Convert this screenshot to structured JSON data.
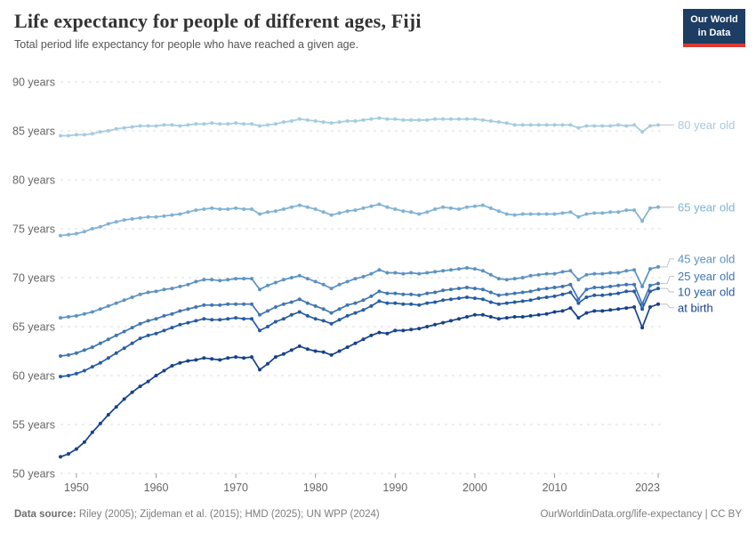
{
  "header": {
    "title": "Life expectancy for people of different ages, Fiji",
    "subtitle": "Total period life expectancy for people who have reached a given age.",
    "logo": {
      "line1": "Our World",
      "line2": "in Data"
    }
  },
  "footer": {
    "datasource_label": "Data source:",
    "datasource_text": " Riley (2005); Zijdeman et al. (2015); HMD (2025); UN WPP (2024)",
    "link_text": "OurWorldinData.org/life-expectancy | CC BY"
  },
  "colors": {
    "background": "#ffffff",
    "title": "#333333",
    "subtitle": "#555555",
    "gridline": "#dddddd",
    "axis_text": "#666666",
    "tick": "#999999",
    "connector": "#c2c2c2",
    "logo_bg": "#1d3d63",
    "logo_red": "#d93a34",
    "footer_text": "#7d7d7d"
  },
  "chart_data": {
    "type": "line",
    "title": "Life expectancy for people of different ages, Fiji",
    "subtitle": "Total period life expectancy for people who have reached a given age.",
    "xlabel": "",
    "ylabel": "years",
    "xlim": [
      1948,
      2023
    ],
    "ylim": [
      50,
      90
    ],
    "grid": "horizontal-dashed",
    "legend_position": "right-end-labels",
    "y_ticks": [
      50,
      55,
      60,
      65,
      70,
      75,
      80,
      85,
      90
    ],
    "y_tick_labels": [
      "50 years",
      "55 years",
      "60 years",
      "65 years",
      "70 years",
      "75 years",
      "80 years",
      "85 years",
      "90 years"
    ],
    "x_ticks": [
      1950,
      1960,
      1970,
      1980,
      1990,
      2000,
      2010,
      2023
    ],
    "x_tick_labels": [
      "1950",
      "1960",
      "1970",
      "1980",
      "1990",
      "2000",
      "2010",
      "2023"
    ],
    "x": [
      1948,
      1949,
      1950,
      1951,
      1952,
      1953,
      1954,
      1955,
      1956,
      1957,
      1958,
      1959,
      1960,
      1961,
      1962,
      1963,
      1964,
      1965,
      1966,
      1967,
      1968,
      1969,
      1970,
      1971,
      1972,
      1973,
      1974,
      1975,
      1976,
      1977,
      1978,
      1979,
      1980,
      1981,
      1982,
      1983,
      1984,
      1985,
      1986,
      1987,
      1988,
      1989,
      1990,
      1991,
      1992,
      1993,
      1994,
      1995,
      1996,
      1997,
      1998,
      1999,
      2000,
      2001,
      2002,
      2003,
      2004,
      2005,
      2006,
      2007,
      2008,
      2009,
      2010,
      2011,
      2012,
      2013,
      2014,
      2015,
      2016,
      2017,
      2018,
      2019,
      2020,
      2021,
      2022,
      2023
    ],
    "series": [
      {
        "name": "80-year-old",
        "label": "80 year old",
        "color": "#a5cbe1",
        "label_offset": 0,
        "values": [
          84.5,
          84.5,
          84.6,
          84.6,
          84.7,
          84.9,
          85.0,
          85.2,
          85.3,
          85.4,
          85.5,
          85.5,
          85.5,
          85.6,
          85.6,
          85.5,
          85.6,
          85.7,
          85.7,
          85.8,
          85.7,
          85.7,
          85.8,
          85.7,
          85.7,
          85.5,
          85.6,
          85.7,
          85.9,
          86.0,
          86.2,
          86.1,
          86.0,
          85.9,
          85.8,
          85.9,
          86.0,
          86.0,
          86.1,
          86.2,
          86.3,
          86.2,
          86.2,
          86.1,
          86.1,
          86.1,
          86.1,
          86.2,
          86.2,
          86.2,
          86.2,
          86.2,
          86.2,
          86.1,
          86.0,
          85.9,
          85.8,
          85.6,
          85.6,
          85.6,
          85.6,
          85.6,
          85.6,
          85.6,
          85.6,
          85.3,
          85.5,
          85.5,
          85.5,
          85.5,
          85.6,
          85.5,
          85.6,
          84.9,
          85.5,
          85.6
        ]
      },
      {
        "name": "65-year-old",
        "label": "65 year old",
        "color": "#7fb2d5",
        "label_offset": 0,
        "values": [
          74.3,
          74.4,
          74.5,
          74.7,
          75.0,
          75.2,
          75.5,
          75.7,
          75.9,
          76.0,
          76.1,
          76.2,
          76.2,
          76.3,
          76.4,
          76.5,
          76.7,
          76.9,
          77.0,
          77.1,
          77.0,
          77.0,
          77.1,
          77.0,
          77.0,
          76.5,
          76.7,
          76.8,
          77.0,
          77.2,
          77.4,
          77.2,
          77.0,
          76.7,
          76.4,
          76.6,
          76.8,
          76.9,
          77.1,
          77.3,
          77.5,
          77.2,
          77.0,
          76.8,
          76.7,
          76.5,
          76.7,
          77.0,
          77.2,
          77.1,
          77.0,
          77.2,
          77.3,
          77.4,
          77.1,
          76.8,
          76.5,
          76.4,
          76.5,
          76.5,
          76.5,
          76.5,
          76.5,
          76.6,
          76.7,
          76.2,
          76.5,
          76.6,
          76.6,
          76.7,
          76.7,
          76.9,
          76.9,
          75.8,
          77.1,
          77.2
        ]
      },
      {
        "name": "45-year-old",
        "label": "45 year old",
        "color": "#5b92c4",
        "label_offset": -9,
        "values": [
          65.9,
          66.0,
          66.1,
          66.3,
          66.5,
          66.8,
          67.1,
          67.4,
          67.7,
          68.0,
          68.3,
          68.5,
          68.6,
          68.8,
          68.9,
          69.1,
          69.3,
          69.6,
          69.8,
          69.8,
          69.7,
          69.8,
          69.9,
          69.9,
          69.9,
          68.8,
          69.2,
          69.5,
          69.8,
          70.0,
          70.2,
          69.9,
          69.6,
          69.3,
          68.9,
          69.3,
          69.6,
          69.9,
          70.1,
          70.4,
          70.8,
          70.5,
          70.5,
          70.4,
          70.5,
          70.4,
          70.5,
          70.6,
          70.7,
          70.8,
          70.9,
          71.0,
          70.9,
          70.7,
          70.3,
          69.9,
          69.8,
          69.9,
          70.0,
          70.2,
          70.3,
          70.4,
          70.4,
          70.6,
          70.7,
          69.8,
          70.3,
          70.4,
          70.4,
          70.5,
          70.5,
          70.7,
          70.8,
          69.1,
          70.9,
          71.1
        ]
      },
      {
        "name": "25-year-old",
        "label": "25 year old",
        "color": "#4076b4",
        "label_offset": -8,
        "values": [
          62.0,
          62.1,
          62.3,
          62.6,
          62.9,
          63.3,
          63.7,
          64.1,
          64.5,
          64.9,
          65.3,
          65.6,
          65.8,
          66.1,
          66.3,
          66.6,
          66.8,
          67.0,
          67.2,
          67.2,
          67.2,
          67.3,
          67.3,
          67.3,
          67.3,
          66.2,
          66.6,
          67.0,
          67.3,
          67.5,
          67.8,
          67.4,
          67.1,
          66.8,
          66.4,
          66.8,
          67.2,
          67.4,
          67.7,
          68.1,
          68.6,
          68.4,
          68.4,
          68.3,
          68.3,
          68.2,
          68.4,
          68.5,
          68.7,
          68.8,
          68.9,
          69.0,
          68.9,
          68.8,
          68.5,
          68.2,
          68.3,
          68.4,
          68.5,
          68.6,
          68.8,
          68.9,
          69.0,
          69.1,
          69.3,
          67.8,
          68.8,
          69.0,
          69.0,
          69.1,
          69.2,
          69.3,
          69.3,
          67.3,
          69.2,
          69.4
        ]
      },
      {
        "name": "10-year-old",
        "label": "10 year old",
        "color": "#265ba4",
        "label_offset": 4,
        "values": [
          59.9,
          60.0,
          60.2,
          60.5,
          60.9,
          61.3,
          61.8,
          62.3,
          62.8,
          63.3,
          63.8,
          64.1,
          64.3,
          64.6,
          64.9,
          65.2,
          65.4,
          65.6,
          65.8,
          65.7,
          65.7,
          65.8,
          65.9,
          65.8,
          65.8,
          64.6,
          65.0,
          65.5,
          65.8,
          66.2,
          66.5,
          66.1,
          65.8,
          65.6,
          65.3,
          65.7,
          66.1,
          66.4,
          66.7,
          67.1,
          67.6,
          67.4,
          67.4,
          67.3,
          67.3,
          67.2,
          67.4,
          67.5,
          67.7,
          67.8,
          67.9,
          68.0,
          67.9,
          67.8,
          67.5,
          67.3,
          67.4,
          67.5,
          67.6,
          67.7,
          67.9,
          68.0,
          68.1,
          68.3,
          68.5,
          67.4,
          68.0,
          68.2,
          68.2,
          68.3,
          68.4,
          68.6,
          68.6,
          66.8,
          68.6,
          68.9
        ]
      },
      {
        "name": "at-birth",
        "label": "at birth",
        "color": "#16418c",
        "label_offset": 4,
        "values": [
          51.7,
          52.0,
          52.5,
          53.2,
          54.2,
          55.1,
          56.0,
          56.8,
          57.6,
          58.3,
          58.9,
          59.4,
          60.0,
          60.5,
          61.0,
          61.3,
          61.5,
          61.6,
          61.8,
          61.7,
          61.6,
          61.8,
          61.9,
          61.8,
          61.9,
          60.6,
          61.2,
          61.9,
          62.2,
          62.6,
          63.0,
          62.7,
          62.5,
          62.4,
          62.1,
          62.5,
          62.9,
          63.3,
          63.7,
          64.1,
          64.4,
          64.3,
          64.6,
          64.6,
          64.7,
          64.8,
          65.0,
          65.2,
          65.4,
          65.6,
          65.8,
          66.0,
          66.2,
          66.2,
          66.0,
          65.8,
          65.9,
          66.0,
          66.0,
          66.1,
          66.2,
          66.3,
          66.5,
          66.6,
          66.9,
          65.9,
          66.4,
          66.6,
          66.6,
          66.7,
          66.8,
          66.9,
          67.0,
          64.9,
          67.0,
          67.3
        ]
      }
    ]
  }
}
